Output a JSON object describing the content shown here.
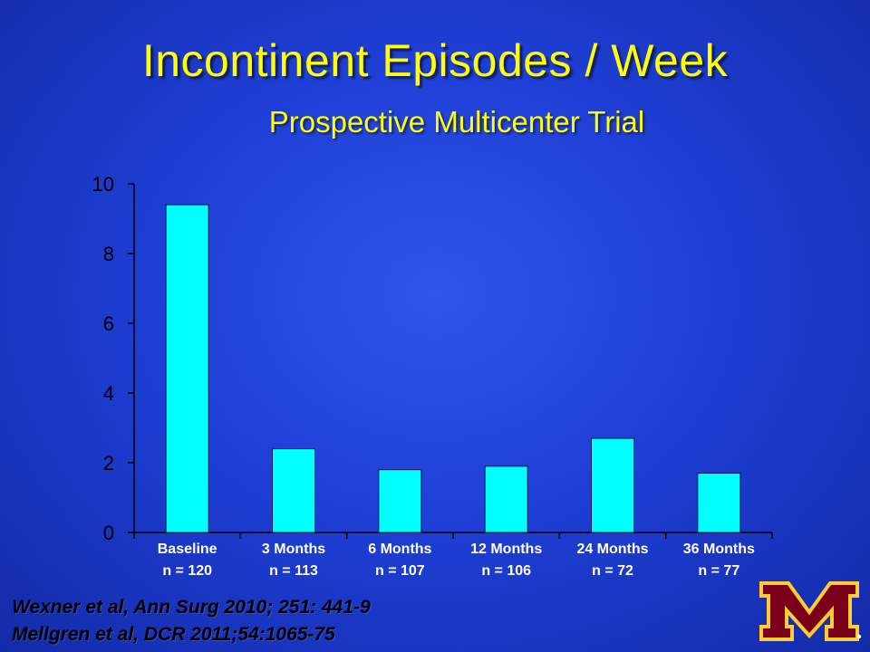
{
  "slide": {
    "title": "Incontinent Episodes / Week",
    "subtitle": "Prospective Multicenter Trial"
  },
  "references": [
    "Wexner et al, Ann Surg 2010; 251: 441-9",
    "Mellgren et al, DCR 2011;54:1065-75"
  ],
  "chart_data": {
    "type": "bar",
    "categories": [
      [
        "Baseline",
        "n = 120"
      ],
      [
        "3 Months",
        "n = 113"
      ],
      [
        "6 Months",
        "n = 107"
      ],
      [
        "12 Months",
        "n = 106"
      ],
      [
        "24 Months",
        "n = 72"
      ],
      [
        "36 Months",
        "n = 77"
      ]
    ],
    "values": [
      9.4,
      2.4,
      1.8,
      1.9,
      2.7,
      1.7
    ],
    "ylim": [
      0,
      10
    ],
    "yticks": [
      "0",
      "2",
      "4",
      "6",
      "8",
      "10"
    ],
    "grid": false,
    "colors": {
      "bar": "#00ffff",
      "bar_edge": "#0a1a60",
      "axis": "#000000",
      "tick_text": "#000000",
      "title": "#ffff00",
      "category_text": "#ffffff"
    }
  }
}
